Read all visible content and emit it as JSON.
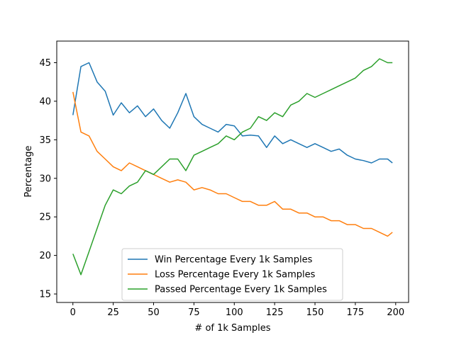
{
  "chart_data": {
    "type": "line",
    "title": "",
    "xlabel": "# of 1k Samples",
    "ylabel": "Percentage",
    "xlim": [
      -10,
      208
    ],
    "ylim": [
      13.9,
      47.8
    ],
    "x_ticks": [
      0,
      25,
      50,
      75,
      100,
      125,
      150,
      175,
      200
    ],
    "y_ticks": [
      15,
      20,
      25,
      30,
      35,
      40,
      45
    ],
    "grid": false,
    "legend_position": "lower-center",
    "series": [
      {
        "name": "Win Percentage Every 1k Samples",
        "color": "#1f77b4",
        "x": [
          0,
          5,
          10,
          15,
          20,
          25,
          30,
          35,
          40,
          45,
          50,
          55,
          60,
          65,
          70,
          75,
          80,
          85,
          90,
          95,
          100,
          105,
          110,
          115,
          120,
          125,
          130,
          135,
          140,
          145,
          150,
          155,
          160,
          165,
          170,
          175,
          180,
          185,
          190,
          195,
          198
        ],
        "values": [
          38.2,
          44.5,
          45.0,
          42.5,
          41.3,
          38.2,
          39.8,
          38.5,
          39.4,
          38.0,
          39.0,
          37.5,
          36.5,
          38.5,
          41.0,
          38.0,
          37.0,
          36.5,
          36.0,
          37.0,
          36.8,
          35.5,
          35.6,
          35.5,
          34.0,
          35.5,
          34.5,
          35.0,
          34.5,
          34.0,
          34.5,
          34.0,
          33.5,
          33.8,
          33.0,
          32.5,
          32.3,
          32.0,
          32.5,
          32.5,
          32.0
        ]
      },
      {
        "name": "Loss Percentage Every 1k Samples",
        "color": "#ff7f0e",
        "x": [
          0,
          5,
          10,
          15,
          20,
          25,
          30,
          35,
          40,
          45,
          50,
          55,
          60,
          65,
          70,
          75,
          80,
          85,
          90,
          95,
          100,
          105,
          110,
          115,
          120,
          125,
          130,
          135,
          140,
          145,
          150,
          155,
          160,
          165,
          170,
          175,
          180,
          185,
          190,
          195,
          198
        ],
        "values": [
          41.2,
          36.0,
          35.5,
          33.5,
          32.5,
          31.5,
          31.0,
          32.0,
          31.5,
          31.0,
          30.5,
          30.0,
          29.5,
          29.8,
          29.5,
          28.5,
          28.8,
          28.5,
          28.0,
          28.0,
          27.5,
          27.0,
          27.0,
          26.5,
          26.5,
          27.0,
          26.0,
          26.0,
          25.5,
          25.5,
          25.0,
          25.0,
          24.5,
          24.5,
          24.0,
          24.0,
          23.5,
          23.5,
          23.0,
          22.5,
          23.0
        ]
      },
      {
        "name": "Passed Percentage Every 1k Samples",
        "color": "#2ca02c",
        "x": [
          0,
          5,
          10,
          15,
          20,
          25,
          30,
          35,
          40,
          45,
          50,
          55,
          60,
          65,
          70,
          75,
          80,
          85,
          90,
          95,
          100,
          105,
          110,
          115,
          120,
          125,
          130,
          135,
          140,
          145,
          150,
          155,
          160,
          165,
          170,
          175,
          180,
          185,
          190,
          195,
          198
        ],
        "values": [
          20.2,
          17.5,
          20.5,
          23.5,
          26.5,
          28.5,
          28.0,
          29.0,
          29.5,
          31.0,
          30.5,
          31.5,
          32.5,
          32.5,
          31.0,
          33.0,
          33.5,
          34.0,
          34.5,
          35.5,
          35.0,
          36.0,
          36.5,
          38.0,
          37.5,
          38.5,
          38.0,
          39.5,
          40.0,
          41.0,
          40.5,
          41.0,
          41.5,
          42.0,
          42.5,
          43.0,
          44.0,
          44.5,
          45.5,
          45.0,
          45.0
        ]
      }
    ]
  }
}
